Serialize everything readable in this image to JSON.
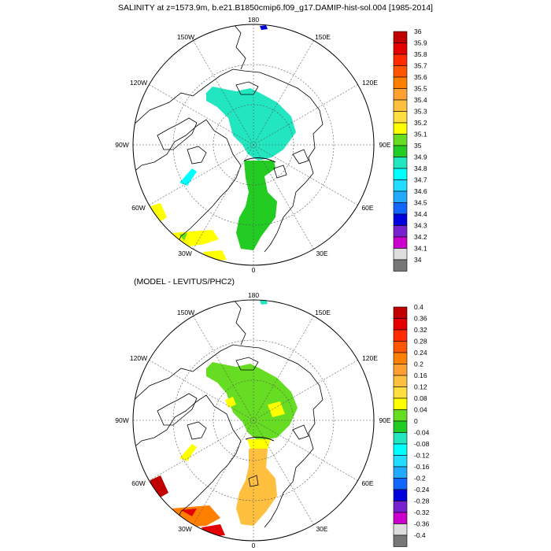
{
  "top_panel": {
    "title": "SALINITY at z=1573.9m, b.e21.B1850cmip6.f09_g17.DAMIP-hist-sol.004 [1985-2014]",
    "lon_labels": {
      "n": "180",
      "nw": "150W",
      "ne": "150E",
      "wnw": "120W",
      "ene": "120E",
      "w": "90W",
      "e": "90E",
      "wsw": "60W",
      "ese": "60E",
      "sw": "30W",
      "se": "30E",
      "s": "0"
    },
    "colorbar": {
      "labels": [
        "36",
        "35.9",
        "35.8",
        "35.7",
        "35.6",
        "35.5",
        "35.4",
        "35.3",
        "35.2",
        "35.1",
        "35",
        "34.9",
        "34.8",
        "34.7",
        "34.6",
        "34.5",
        "34.4",
        "34.3",
        "34.2",
        "34.1",
        "34"
      ],
      "colors": [
        "#c00000",
        "#e40000",
        "#ff2a00",
        "#ff5500",
        "#ff8000",
        "#ffa030",
        "#ffc040",
        "#ffde40",
        "#ffff00",
        "#66dd22",
        "#22cc22",
        "#22e6c0",
        "#00ffff",
        "#22ddff",
        "#22aaff",
        "#1166ff",
        "#0000dd",
        "#7722cc",
        "#cc00cc",
        "#dddddd",
        "#777777"
      ]
    }
  },
  "bottom_panel": {
    "title": "(MODEL - LEVITUS/PHC2)",
    "lon_labels": {
      "n": "180",
      "nw": "150W",
      "ne": "150E",
      "wnw": "120W",
      "ene": "120E",
      "w": "90W",
      "e": "90E",
      "wsw": "60W",
      "ese": "60E",
      "sw": "30W",
      "se": "30E",
      "s": "0"
    },
    "colorbar": {
      "labels": [
        "0.4",
        "0.36",
        "0.32",
        "0.28",
        "0.24",
        "0.2",
        "0.16",
        "0.12",
        "0.08",
        "0.04",
        "0",
        "-0.04",
        "-0.08",
        "-0.12",
        "-0.16",
        "-0.2",
        "-0.24",
        "-0.28",
        "-0.32",
        "-0.36",
        "-0.4"
      ],
      "colors": [
        "#c00000",
        "#e40000",
        "#ff2a00",
        "#ff5500",
        "#ff8000",
        "#ffa030",
        "#ffc040",
        "#ffde40",
        "#ffff00",
        "#66dd22",
        "#22cc22",
        "#22e6c0",
        "#00ffff",
        "#22ddff",
        "#22aaff",
        "#1166ff",
        "#0000dd",
        "#7722cc",
        "#cc00cc",
        "#dddddd",
        "#777777"
      ]
    }
  }
}
